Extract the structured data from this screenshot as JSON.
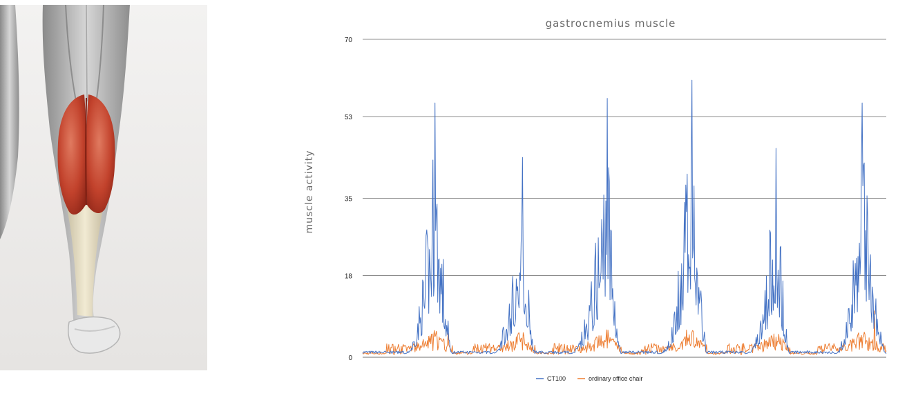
{
  "colors": {
    "ct100": "#4472c4",
    "office_chair": "#ed7d31",
    "grid": "#8c8c8c"
  },
  "illustration": {
    "name": "calf-muscle-illustration"
  },
  "chart_data": {
    "type": "line",
    "title": "gastrocnemius muscle",
    "ylabel": "muscle activity",
    "xlabel": "",
    "yticks": [
      "0",
      "18",
      "35",
      "53",
      "70"
    ],
    "ylim": [
      0,
      70
    ],
    "xlim": [
      0,
      760
    ],
    "grid": true,
    "legend_position": "bottom",
    "cycles": [
      {
        "start": 60,
        "peak": 105,
        "end": 130,
        "max": 56
      },
      {
        "start": 185,
        "peak": 232,
        "end": 250,
        "max": 44
      },
      {
        "start": 300,
        "peak": 355,
        "end": 375,
        "max": 57
      },
      {
        "start": 430,
        "peak": 478,
        "end": 500,
        "max": 61
      },
      {
        "start": 555,
        "peak": 600,
        "end": 620,
        "max": 46
      },
      {
        "start": 685,
        "peak": 725,
        "end": 760,
        "max": 56
      }
    ],
    "series": [
      {
        "name": "CT100",
        "color_key": "ct100",
        "baseline": 0.8,
        "x": [],
        "values": []
      },
      {
        "name": "ordinary office chair",
        "color_key": "office_chair",
        "baseline": 0.6,
        "x": [],
        "values": []
      }
    ]
  }
}
